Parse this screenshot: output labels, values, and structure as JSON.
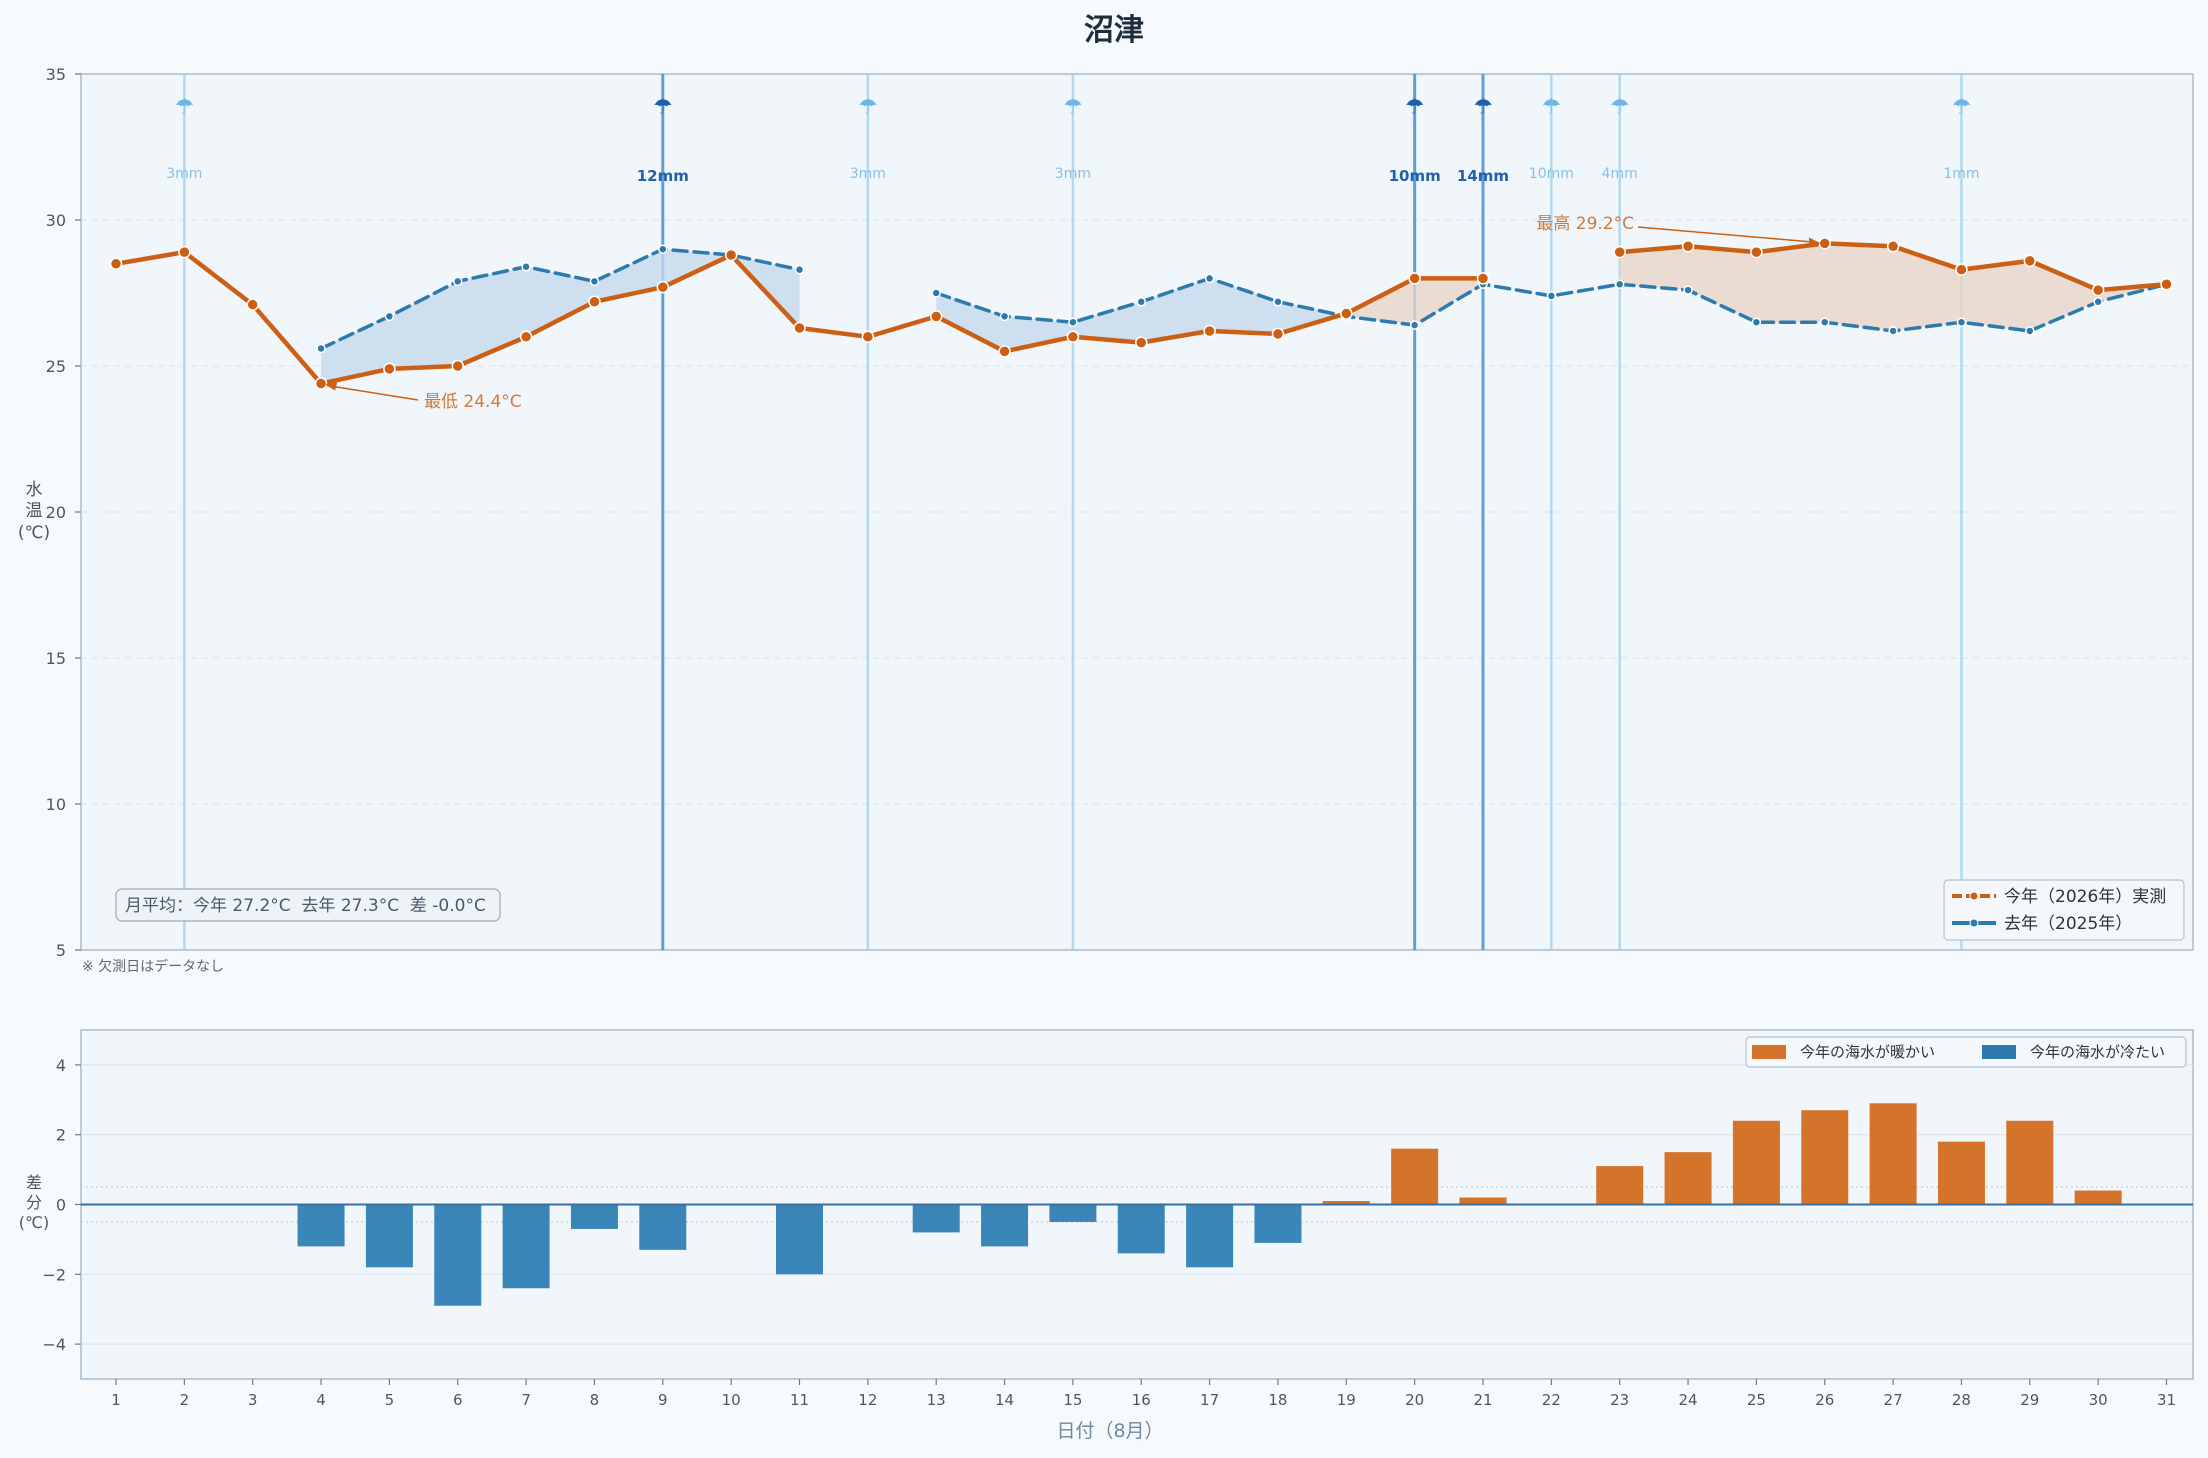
{
  "title": "沼津",
  "note": "※ 欠測日はデータなし",
  "avg_text": "月平均：今年 27.2°C  去年 27.3°C  差 -0.0°C",
  "colors": {
    "this_year": "#cc5f14",
    "last_year": "#2e7aad",
    "warm_fill": "#e9d6c8",
    "cold_fill": "#c6dbec",
    "bar_warm": "#d4742a",
    "bar_cold": "#3a86b8",
    "rain_light": "#9fd0ec",
    "rain_heavy": "#4a8ed6",
    "panel_bg": "#f1f6fb",
    "axis": "#a9bccb"
  },
  "chart_data": [
    {
      "type": "line",
      "title": "沼津",
      "ylabel": "水温(℃)",
      "ylim": [
        5,
        35
      ],
      "yticks": [
        5,
        10,
        15,
        20,
        25,
        30,
        35
      ],
      "xlim": [
        1,
        31
      ],
      "x": [
        1,
        2,
        3,
        4,
        5,
        6,
        7,
        8,
        9,
        10,
        11,
        12,
        13,
        14,
        15,
        16,
        17,
        18,
        19,
        20,
        21,
        22,
        23,
        24,
        25,
        26,
        27,
        28,
        29,
        30,
        31
      ],
      "series": [
        {
          "name": "今年（2026年）実測",
          "values": [
            28.5,
            28.9,
            27.1,
            24.4,
            24.9,
            25.0,
            26.0,
            27.2,
            27.7,
            28.8,
            26.3,
            26.0,
            26.7,
            25.5,
            26.0,
            25.8,
            26.2,
            26.1,
            26.8,
            28.0,
            28.0,
            null,
            28.9,
            29.1,
            28.9,
            29.2,
            29.1,
            28.3,
            28.6,
            27.6,
            27.8
          ]
        },
        {
          "name": "去年（2025年）",
          "values": [
            null,
            null,
            null,
            25.6,
            26.7,
            27.9,
            28.4,
            27.9,
            29.0,
            28.8,
            28.3,
            null,
            27.5,
            26.7,
            26.5,
            27.2,
            28.0,
            27.2,
            26.7,
            26.4,
            27.8,
            27.4,
            27.8,
            27.6,
            26.5,
            26.5,
            26.2,
            26.5,
            26.2,
            27.2,
            27.8
          ]
        }
      ],
      "rain": [
        {
          "day": 2,
          "label": "3mm",
          "heavy": false
        },
        {
          "day": 9,
          "label": "12mm",
          "heavy": true
        },
        {
          "day": 12,
          "label": "3mm",
          "heavy": false
        },
        {
          "day": 15,
          "label": "3mm",
          "heavy": false
        },
        {
          "day": 20,
          "label": "10mm",
          "heavy": true
        },
        {
          "day": 21,
          "label": "14mm",
          "heavy": true
        },
        {
          "day": 22,
          "label": "10mm",
          "heavy": false
        },
        {
          "day": 23,
          "label": "4mm",
          "heavy": false
        },
        {
          "day": 28,
          "label": "1mm",
          "heavy": false
        }
      ],
      "rain_icon": "umbrella-icon",
      "annotations": [
        {
          "text": "最低 24.4°C",
          "day": 4,
          "value": 24.4
        },
        {
          "text": "最高 29.2°C",
          "day": 26,
          "value": 29.2
        }
      ],
      "legend_position": "bottom-right"
    },
    {
      "type": "bar",
      "ylabel": "差分(℃)",
      "xlabel": "日付（8月）",
      "ylim": [
        -5,
        5
      ],
      "yticks": [
        -4,
        -2,
        0,
        2,
        4
      ],
      "categories": [
        "1",
        "2",
        "3",
        "4",
        "5",
        "6",
        "7",
        "8",
        "9",
        "10",
        "11",
        "12",
        "13",
        "14",
        "15",
        "16",
        "17",
        "18",
        "19",
        "20",
        "21",
        "22",
        "23",
        "24",
        "25",
        "26",
        "27",
        "28",
        "29",
        "30",
        "31"
      ],
      "values": [
        null,
        null,
        null,
        -1.2,
        -1.8,
        -2.9,
        -2.4,
        -0.7,
        -1.3,
        null,
        -2.0,
        null,
        -0.8,
        -1.2,
        -0.5,
        -1.4,
        -1.8,
        -1.1,
        0.1,
        1.6,
        0.2,
        null,
        1.1,
        1.5,
        2.4,
        2.7,
        2.9,
        1.8,
        2.4,
        0.4,
        null
      ],
      "legend": [
        "今年の海水が暖かい",
        "今年の海水が冷たい"
      ],
      "legend_position": "top-right"
    }
  ]
}
